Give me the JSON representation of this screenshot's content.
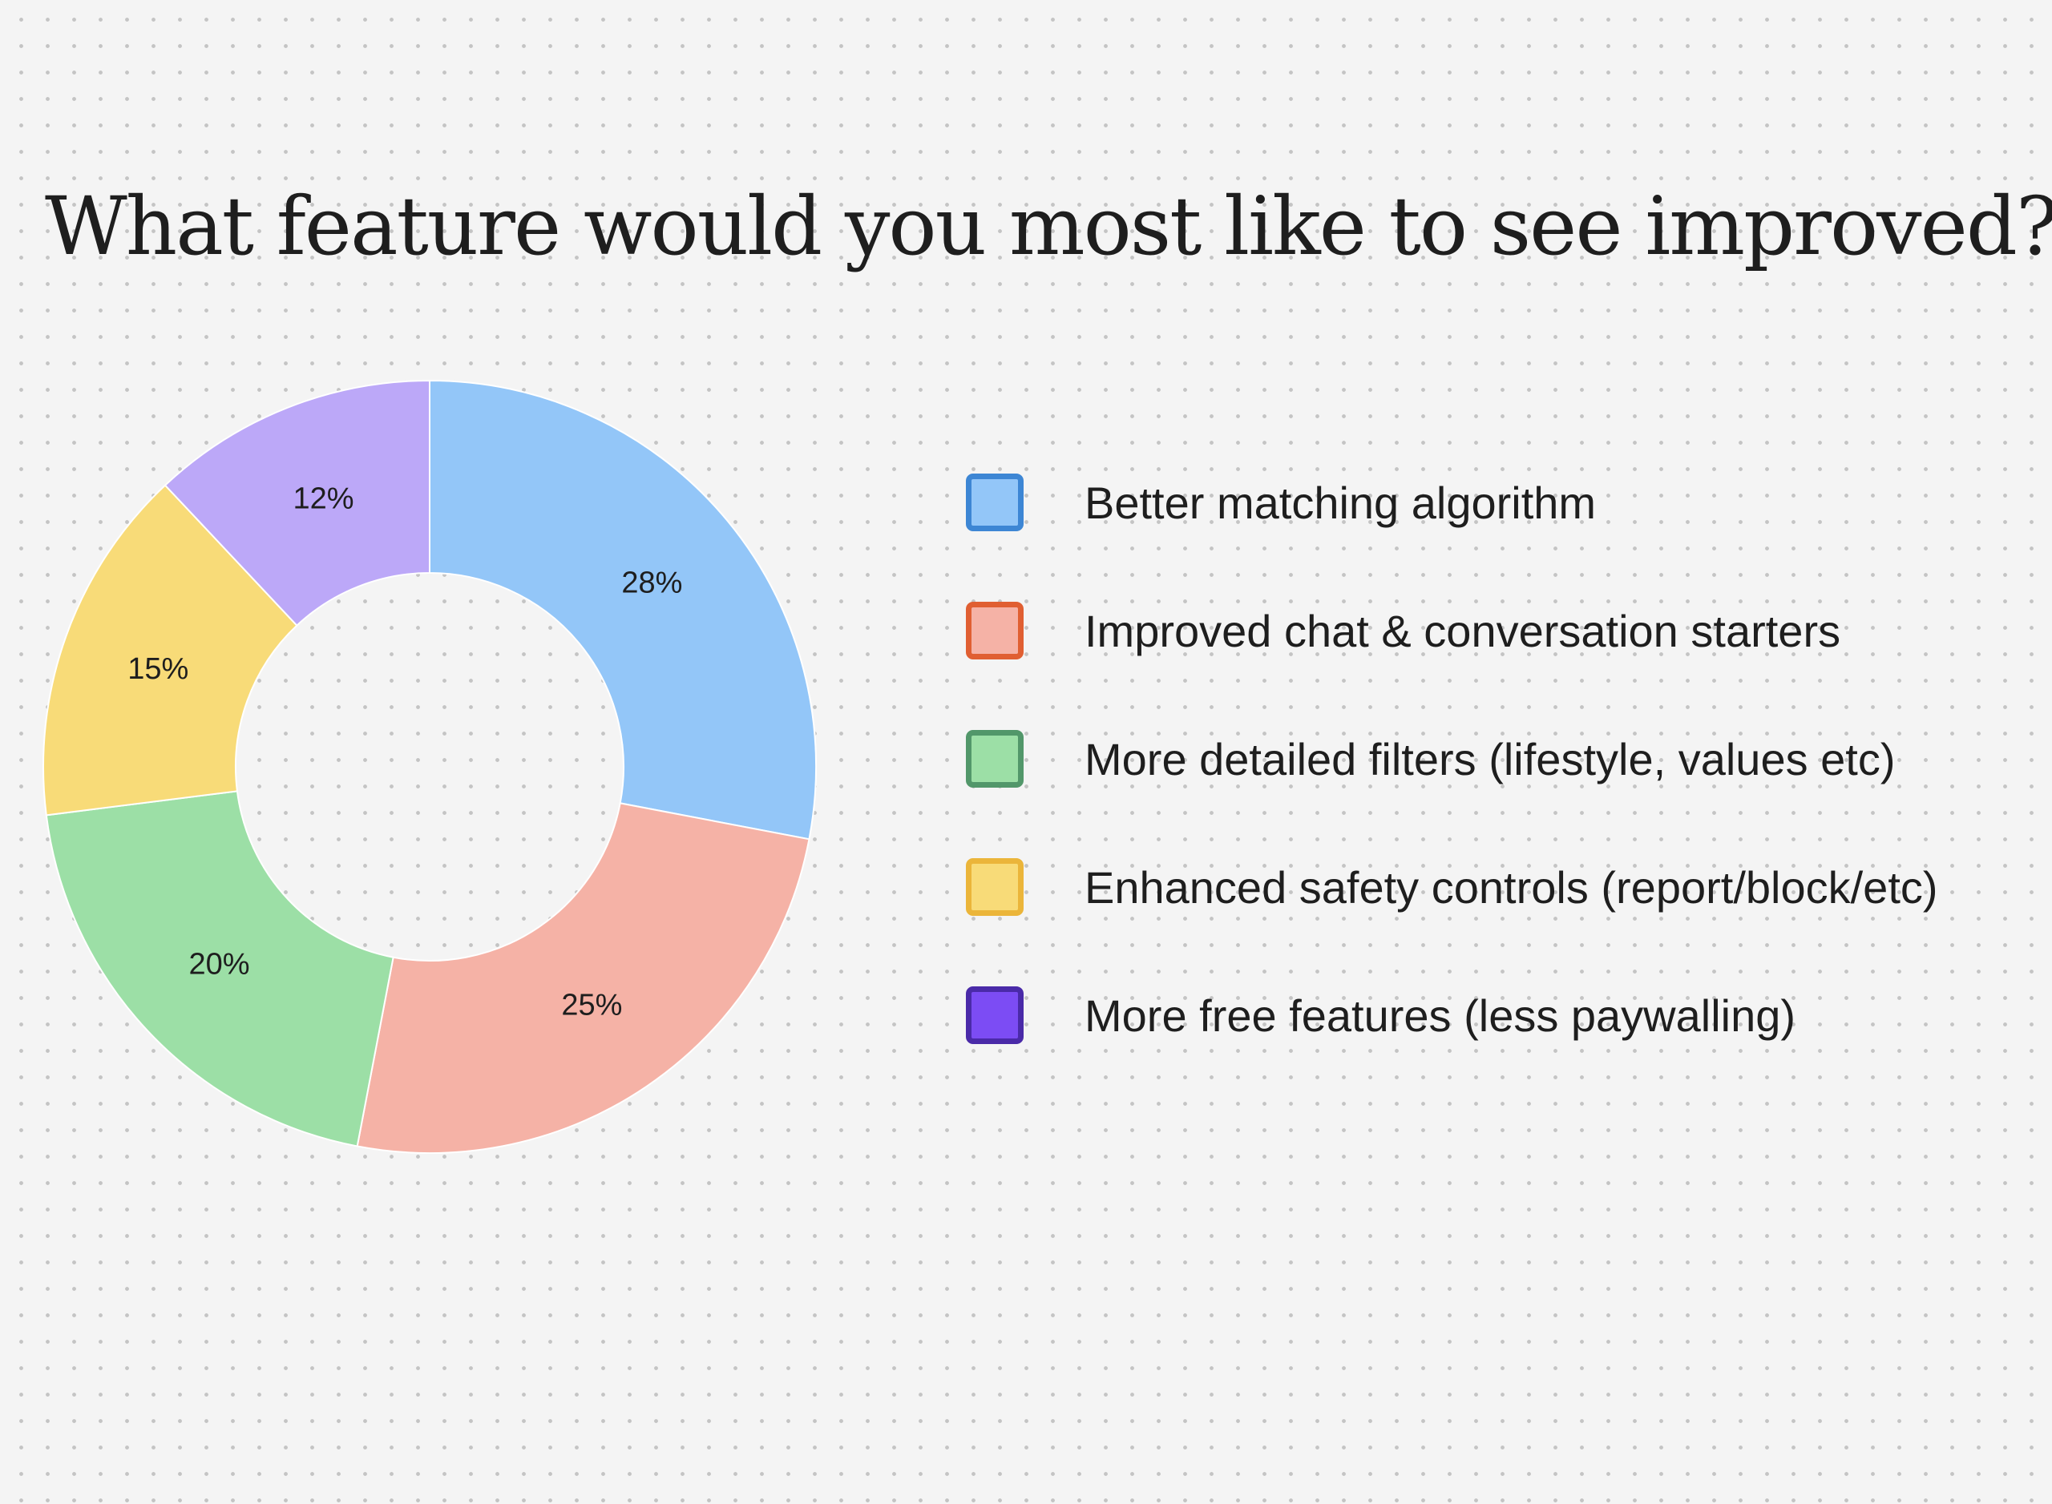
{
  "chart_data": {
    "type": "pie",
    "title": "What feature would you most like to see improved?",
    "donut": true,
    "legend_position": "right",
    "slices": [
      {
        "label": "Better matching algorithm",
        "value": 28,
        "value_label": "28%",
        "fill": "#93c6f8",
        "border": "#3d86d4"
      },
      {
        "label": "Improved chat & conversation starters",
        "value": 25,
        "value_label": "25%",
        "fill": "#f5b2a6",
        "border": "#e05f32"
      },
      {
        "label": "More detailed filters (lifestyle, values etc)",
        "value": 20,
        "value_label": "20%",
        "fill": "#9cdfa6",
        "border": "#52976a"
      },
      {
        "label": "Enhanced safety controls (report/block/etc)",
        "value": 15,
        "value_label": "15%",
        "fill": "#f8db78",
        "border": "#ebb53a"
      },
      {
        "label": "More free features (less paywalling)",
        "value": 12,
        "value_label": "12%",
        "fill": "#bca8f8",
        "border": "#4a2aa8",
        "legend_fill": "#7c4cf4"
      }
    ]
  }
}
